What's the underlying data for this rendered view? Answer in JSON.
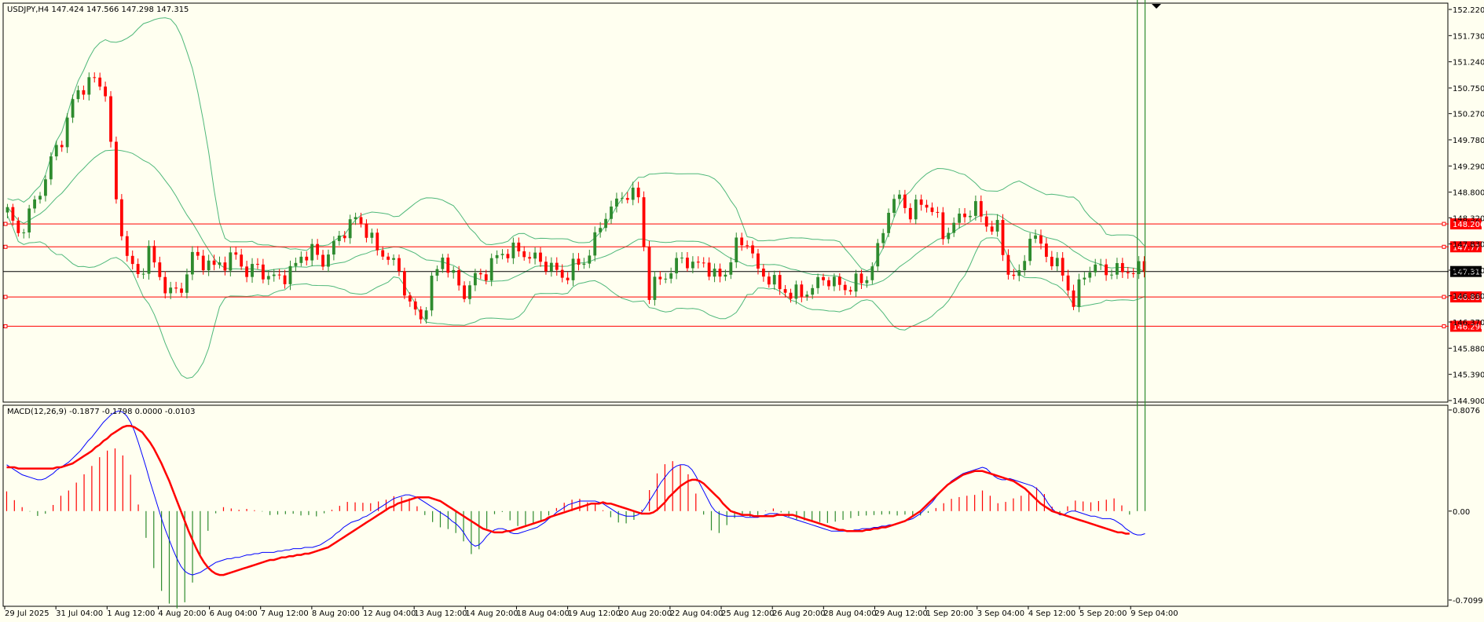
{
  "header": {
    "symbol_info": "USDJPY,H4  147.424 147.566 147.298 147.315"
  },
  "indicator": {
    "label": "MACD(12,26,9) -0.1877 -0.1798 0.0000 -0.0103"
  },
  "colors": {
    "background": "#fffff0",
    "frame": "#000000",
    "bull_candle": "#2e8b2e",
    "bear_candle": "#ff0000",
    "bollinger": "#4fb87a",
    "hline": "#ff0000",
    "current_price_line": "#000000",
    "macd_line": "#0000ff",
    "signal_line": "#ff0000",
    "hist_positive": "#ff0000",
    "hist_negative": "#2e8b2e"
  },
  "chart_data": [
    {
      "type": "candlestick",
      "title": "USDJPY,H4",
      "ylim": [
        144.9,
        152.22
      ],
      "y_ticks": [
        "152.220",
        "151.730",
        "151.240",
        "150.750",
        "150.270",
        "149.780",
        "149.290",
        "148.800",
        "148.320",
        "147.830",
        "147.340",
        "146.860",
        "146.370",
        "145.880",
        "145.390",
        "144.900"
      ],
      "x_labels": [
        "29 Jul 2025",
        "31 Jul 04:00",
        "1 Aug 12:00",
        "4 Aug 20:00",
        "6 Aug 04:00",
        "7 Aug 12:00",
        "8 Aug 20:00",
        "12 Aug 04:00",
        "13 Aug 12:00",
        "14 Aug 20:00",
        "18 Aug 04:00",
        "19 Aug 12:00",
        "20 Aug 20:00",
        "22 Aug 04:00",
        "25 Aug 12:00",
        "26 Aug 20:00",
        "28 Aug 04:00",
        "29 Aug 12:00",
        "1 Sep 20:00",
        "3 Sep 04:00",
        "4 Sep 12:00",
        "5 Sep 20:00",
        "9 Sep 04:00"
      ],
      "horizontal_levels": [
        {
          "value": 148.206,
          "label": "148.206"
        },
        {
          "value": 147.777,
          "label": "147.777"
        },
        {
          "value": 146.839,
          "label": "146.839"
        },
        {
          "value": 146.29,
          "label": "146.290"
        }
      ],
      "current_price": {
        "value": 147.315,
        "label": "147.315"
      },
      "close_path": [
        [
          0,
          148.45
        ],
        [
          2,
          148.0
        ],
        [
          4,
          148.4
        ],
        [
          6,
          148.8
        ],
        [
          8,
          149.4
        ],
        [
          10,
          149.8
        ],
        [
          12,
          150.5
        ],
        [
          14,
          150.8
        ],
        [
          16,
          150.9
        ],
        [
          18,
          150.7
        ],
        [
          20,
          148.6
        ],
        [
          22,
          147.6
        ],
        [
          24,
          147.2
        ],
        [
          26,
          147.7
        ],
        [
          28,
          147.2
        ],
        [
          30,
          146.9
        ],
        [
          32,
          147.0
        ],
        [
          34,
          147.6
        ],
        [
          36,
          147.5
        ],
        [
          38,
          147.4
        ],
        [
          40,
          147.5
        ],
        [
          42,
          147.6
        ],
        [
          44,
          147.3
        ],
        [
          46,
          147.4
        ],
        [
          48,
          147.2
        ],
        [
          50,
          147.2
        ],
        [
          52,
          147.3
        ],
        [
          54,
          147.6
        ],
        [
          56,
          147.7
        ],
        [
          58,
          147.5
        ],
        [
          60,
          147.8
        ],
        [
          62,
          148.1
        ],
        [
          64,
          148.3
        ],
        [
          66,
          148.1
        ],
        [
          68,
          147.7
        ],
        [
          70,
          147.6
        ],
        [
          72,
          147.3
        ],
        [
          74,
          146.7
        ],
        [
          76,
          146.4
        ],
        [
          78,
          147.1
        ],
        [
          80,
          147.6
        ],
        [
          82,
          147.2
        ],
        [
          84,
          146.9
        ],
        [
          86,
          147.2
        ],
        [
          88,
          147.3
        ],
        [
          90,
          147.6
        ],
        [
          92,
          147.7
        ],
        [
          94,
          147.7
        ],
        [
          96,
          147.6
        ],
        [
          98,
          147.5
        ],
        [
          100,
          147.4
        ],
        [
          102,
          147.2
        ],
        [
          104,
          147.4
        ],
        [
          106,
          147.5
        ],
        [
          108,
          147.9
        ],
        [
          110,
          148.4
        ],
        [
          112,
          148.6
        ],
        [
          114,
          148.8
        ],
        [
          116,
          148.7
        ],
        [
          118,
          146.9
        ],
        [
          120,
          147.2
        ],
        [
          122,
          147.3
        ],
        [
          124,
          147.6
        ],
        [
          126,
          147.4
        ],
        [
          128,
          147.5
        ],
        [
          130,
          147.2
        ],
        [
          132,
          147.3
        ],
        [
          134,
          147.8
        ],
        [
          136,
          147.9
        ],
        [
          138,
          147.3
        ],
        [
          140,
          147.2
        ],
        [
          142,
          147.0
        ],
        [
          144,
          146.9
        ],
        [
          146,
          146.9
        ],
        [
          148,
          147.0
        ],
        [
          150,
          147.2
        ],
        [
          152,
          147.1
        ],
        [
          154,
          147.0
        ],
        [
          156,
          147.1
        ],
        [
          158,
          147.2
        ],
        [
          160,
          147.7
        ],
        [
          162,
          148.5
        ],
        [
          164,
          148.7
        ],
        [
          166,
          148.4
        ],
        [
          168,
          148.6
        ],
        [
          170,
          148.5
        ],
        [
          172,
          148.0
        ],
        [
          174,
          148.2
        ],
        [
          176,
          148.4
        ],
        [
          178,
          148.5
        ],
        [
          180,
          148.2
        ],
        [
          182,
          148.1
        ],
        [
          184,
          147.3
        ],
        [
          186,
          147.2
        ],
        [
          188,
          148.0
        ],
        [
          190,
          147.8
        ],
        [
          192,
          147.5
        ],
        [
          194,
          147.3
        ],
        [
          196,
          146.7
        ],
        [
          198,
          147.3
        ],
        [
          200,
          147.4
        ],
        [
          202,
          147.33
        ]
      ]
    },
    {
      "type": "line",
      "title": "MACD(12,26,9) -0.1877 -0.1798 0.0000 -0.0103",
      "ylim": [
        -0.7099,
        0.8076
      ],
      "y_ticks": [
        "0.8076",
        "0.00",
        "-0.7099"
      ],
      "series": [
        {
          "name": "MACD",
          "values": [
            0.37,
            0.35,
            0.33,
            0.31,
            0.29,
            0.28,
            0.27,
            0.26,
            0.25,
            0.25,
            0.26,
            0.28,
            0.3,
            0.33,
            0.35,
            0.37,
            0.39,
            0.42,
            0.45,
            0.48,
            0.52,
            0.56,
            0.59,
            0.63,
            0.67,
            0.71,
            0.74,
            0.77,
            0.79,
            0.8,
            0.79,
            0.76,
            0.71,
            0.64,
            0.55,
            0.45,
            0.35,
            0.24,
            0.14,
            0.04,
            -0.06,
            -0.15,
            -0.23,
            -0.31,
            -0.38,
            -0.44,
            -0.48,
            -0.5,
            -0.51,
            -0.5,
            -0.49,
            -0.47,
            -0.45,
            -0.43,
            -0.41,
            -0.4,
            -0.39,
            -0.38,
            -0.38,
            -0.37,
            -0.37,
            -0.36,
            -0.35,
            -0.35,
            -0.34,
            -0.34,
            -0.33,
            -0.33,
            -0.33,
            -0.33,
            -0.32,
            -0.32,
            -0.31,
            -0.31,
            -0.3,
            -0.3,
            -0.3,
            -0.29,
            -0.29,
            -0.29,
            -0.28,
            -0.27,
            -0.25,
            -0.23,
            -0.21,
            -0.18,
            -0.16,
            -0.13,
            -0.11,
            -0.09,
            -0.08,
            -0.07,
            -0.05,
            -0.04,
            -0.02,
            0.0,
            0.02,
            0.04,
            0.06,
            0.08,
            0.1,
            0.11,
            0.12,
            0.13,
            0.13,
            0.12,
            0.11,
            0.09,
            0.07,
            0.05,
            0.03,
            0.01,
            -0.01,
            -0.03,
            -0.05,
            -0.08,
            -0.1,
            -0.13,
            -0.17,
            -0.22,
            -0.26,
            -0.28,
            -0.27,
            -0.24,
            -0.2,
            -0.17,
            -0.15,
            -0.14,
            -0.14,
            -0.15,
            -0.17,
            -0.18,
            -0.18,
            -0.17,
            -0.16,
            -0.15,
            -0.14,
            -0.13,
            -0.11,
            -0.09,
            -0.06,
            -0.04,
            -0.01,
            0.01,
            0.03,
            0.05,
            0.06,
            0.07,
            0.08,
            0.08,
            0.08,
            0.08,
            0.08,
            0.07,
            0.06,
            0.04,
            0.02,
            0.0,
            -0.02,
            -0.03,
            -0.04,
            -0.04,
            -0.04,
            -0.03,
            -0.01,
            0.03,
            0.08,
            0.13,
            0.18,
            0.23,
            0.27,
            0.31,
            0.34,
            0.36,
            0.37,
            0.37,
            0.36,
            0.33,
            0.28,
            0.22,
            0.16,
            0.1,
            0.04,
            0.0,
            -0.02,
            -0.03,
            -0.04,
            -0.04,
            -0.04,
            -0.04,
            -0.04,
            -0.05,
            -0.05,
            -0.05,
            -0.05,
            -0.04,
            -0.03,
            -0.02,
            -0.02,
            -0.02,
            -0.03,
            -0.04,
            -0.05,
            -0.06,
            -0.07,
            -0.08,
            -0.09,
            -0.1,
            -0.11,
            -0.12,
            -0.13,
            -0.14,
            -0.15,
            -0.16,
            -0.16,
            -0.16,
            -0.16,
            -0.16,
            -0.16,
            -0.15,
            -0.15,
            -0.14,
            -0.14,
            -0.14,
            -0.13,
            -0.13,
            -0.12,
            -0.12,
            -0.11,
            -0.11,
            -0.1,
            -0.09,
            -0.08,
            -0.07,
            -0.06,
            -0.04,
            -0.02,
            0.01,
            0.04,
            0.07,
            0.11,
            0.15,
            0.18,
            0.21,
            0.24,
            0.26,
            0.28,
            0.3,
            0.31,
            0.32,
            0.33,
            0.34,
            0.35,
            0.34,
            0.31,
            0.28,
            0.26,
            0.25,
            0.25,
            0.26,
            0.25,
            0.24,
            0.23,
            0.22,
            0.21,
            0.2,
            0.18,
            0.15,
            0.11,
            0.06,
            0.02,
            -0.01,
            -0.03,
            -0.03,
            -0.01,
            0.0,
            0.0,
            -0.01,
            -0.02,
            -0.03,
            -0.04,
            -0.04,
            -0.05,
            -0.06,
            -0.06,
            -0.06,
            -0.07,
            -0.09,
            -0.11,
            -0.14,
            -0.16,
            -0.18,
            -0.19,
            -0.19,
            -0.18
          ]
        },
        {
          "name": "Signal",
          "values": [
            0.35,
            0.35,
            0.35,
            0.34,
            0.34,
            0.34,
            0.34,
            0.34,
            0.34,
            0.34,
            0.34,
            0.34,
            0.34,
            0.35,
            0.35,
            0.36,
            0.37,
            0.38,
            0.4,
            0.42,
            0.44,
            0.46,
            0.48,
            0.51,
            0.53,
            0.56,
            0.58,
            0.61,
            0.63,
            0.65,
            0.67,
            0.68,
            0.68,
            0.67,
            0.65,
            0.63,
            0.59,
            0.55,
            0.5,
            0.44,
            0.38,
            0.31,
            0.24,
            0.16,
            0.08,
            0.0,
            -0.08,
            -0.16,
            -0.23,
            -0.3,
            -0.36,
            -0.41,
            -0.45,
            -0.48,
            -0.5,
            -0.51,
            -0.51,
            -0.5,
            -0.49,
            -0.48,
            -0.47,
            -0.46,
            -0.45,
            -0.44,
            -0.43,
            -0.42,
            -0.41,
            -0.4,
            -0.39,
            -0.39,
            -0.38,
            -0.37,
            -0.37,
            -0.36,
            -0.36,
            -0.35,
            -0.35,
            -0.34,
            -0.34,
            -0.33,
            -0.32,
            -0.31,
            -0.3,
            -0.29,
            -0.27,
            -0.25,
            -0.23,
            -0.21,
            -0.19,
            -0.17,
            -0.15,
            -0.13,
            -0.11,
            -0.09,
            -0.07,
            -0.05,
            -0.03,
            -0.01,
            0.01,
            0.03,
            0.04,
            0.06,
            0.07,
            0.08,
            0.09,
            0.1,
            0.11,
            0.11,
            0.11,
            0.11,
            0.1,
            0.09,
            0.08,
            0.06,
            0.04,
            0.02,
            0.0,
            -0.02,
            -0.04,
            -0.06,
            -0.08,
            -0.1,
            -0.12,
            -0.14,
            -0.15,
            -0.16,
            -0.17,
            -0.17,
            -0.17,
            -0.16,
            -0.16,
            -0.15,
            -0.14,
            -0.13,
            -0.12,
            -0.11,
            -0.1,
            -0.09,
            -0.08,
            -0.07,
            -0.05,
            -0.04,
            -0.03,
            -0.02,
            -0.01,
            0.0,
            0.01,
            0.02,
            0.03,
            0.04,
            0.05,
            0.06,
            0.06,
            0.06,
            0.07,
            0.06,
            0.06,
            0.05,
            0.04,
            0.03,
            0.02,
            0.01,
            0.0,
            -0.01,
            -0.02,
            -0.02,
            -0.02,
            -0.01,
            0.01,
            0.04,
            0.07,
            0.11,
            0.14,
            0.17,
            0.2,
            0.22,
            0.24,
            0.25,
            0.25,
            0.24,
            0.22,
            0.19,
            0.16,
            0.13,
            0.1,
            0.06,
            0.03,
            0.0,
            -0.01,
            -0.02,
            -0.03,
            -0.03,
            -0.03,
            -0.04,
            -0.04,
            -0.04,
            -0.04,
            -0.04,
            -0.04,
            -0.03,
            -0.03,
            -0.03,
            -0.03,
            -0.03,
            -0.04,
            -0.05,
            -0.06,
            -0.07,
            -0.08,
            -0.09,
            -0.1,
            -0.11,
            -0.12,
            -0.13,
            -0.14,
            -0.15,
            -0.15,
            -0.16,
            -0.16,
            -0.16,
            -0.16,
            -0.16,
            -0.15,
            -0.15,
            -0.14,
            -0.14,
            -0.13,
            -0.13,
            -0.12,
            -0.11,
            -0.1,
            -0.09,
            -0.08,
            -0.06,
            -0.04,
            -0.02,
            0.0,
            0.03,
            0.06,
            0.09,
            0.12,
            0.15,
            0.18,
            0.21,
            0.23,
            0.25,
            0.27,
            0.29,
            0.3,
            0.31,
            0.32,
            0.32,
            0.32,
            0.31,
            0.3,
            0.29,
            0.28,
            0.27,
            0.26,
            0.25,
            0.24,
            0.22,
            0.2,
            0.18,
            0.15,
            0.12,
            0.09,
            0.06,
            0.04,
            0.02,
            0.0,
            -0.01,
            -0.02,
            -0.03,
            -0.04,
            -0.05,
            -0.06,
            -0.07,
            -0.08,
            -0.09,
            -0.1,
            -0.11,
            -0.12,
            -0.13,
            -0.14,
            -0.15,
            -0.16,
            -0.17,
            -0.17,
            -0.18,
            -0.18
          ]
        }
      ]
    }
  ]
}
